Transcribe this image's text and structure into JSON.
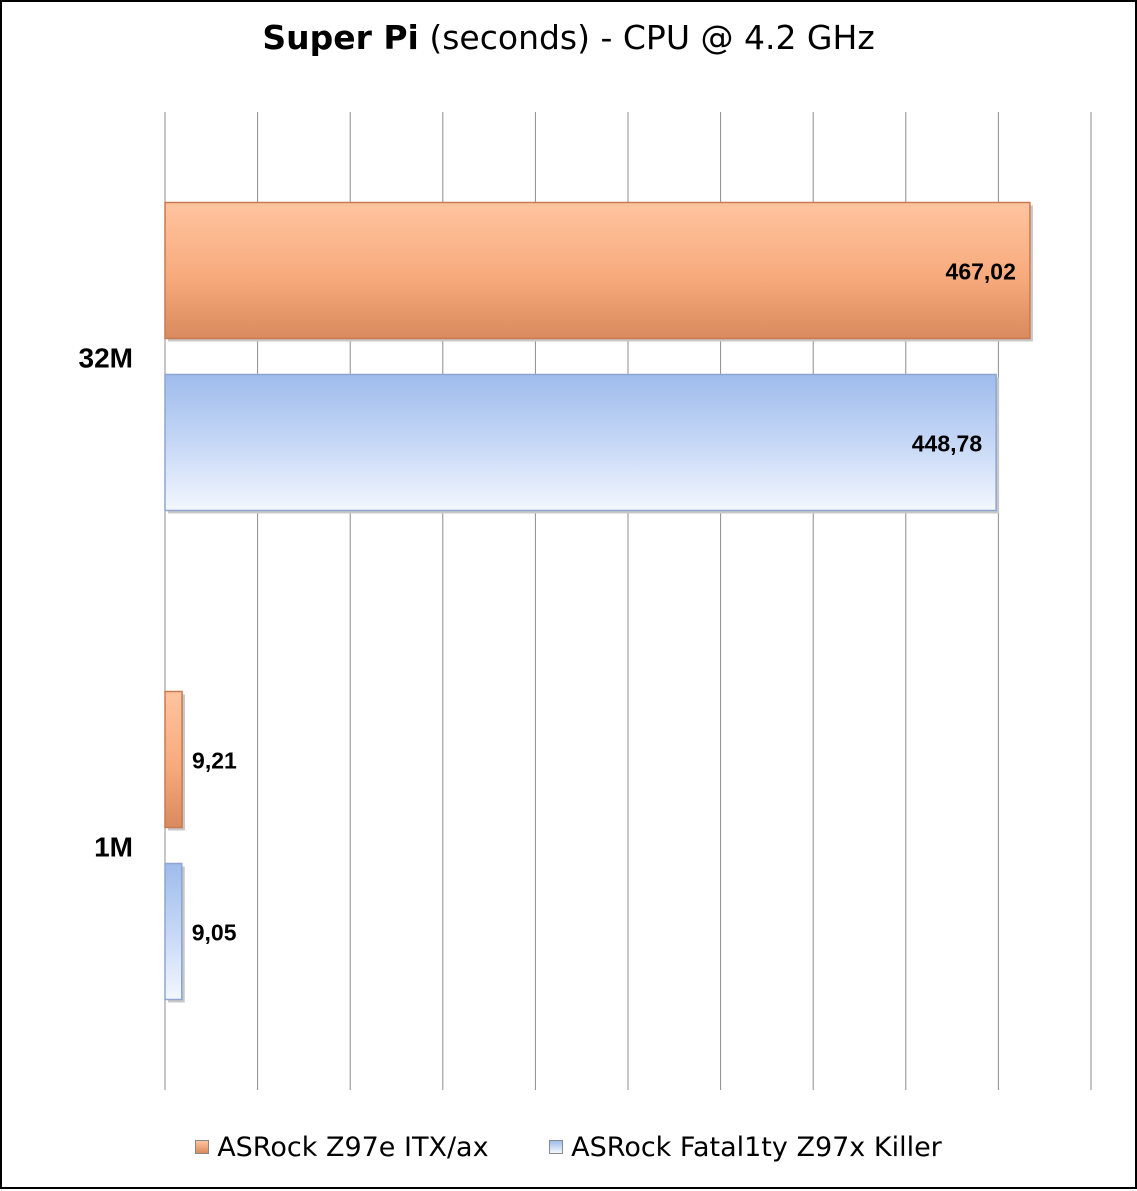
{
  "chart_data": {
    "type": "bar",
    "orientation": "horizontal",
    "title": {
      "main": "Super Pi",
      "rest": " (seconds) - CPU @ 4.2 GHz"
    },
    "categories": [
      "32M",
      "1M"
    ],
    "series": [
      {
        "name": "ASRock Z97e ITX/ax",
        "values": [
          467.02,
          9.21
        ],
        "labels": [
          "467,02",
          "9,21"
        ],
        "color": "#f2a276"
      },
      {
        "name": "ASRock Fatal1ty Z97x Killer",
        "values": [
          448.78,
          9.05
        ],
        "labels": [
          "448,78",
          "9,05"
        ],
        "color": "#b7cdf2"
      }
    ],
    "xlim": [
      0,
      500
    ],
    "grid": true,
    "axis_tick_labels_shown": false,
    "legend_position": "bottom"
  }
}
